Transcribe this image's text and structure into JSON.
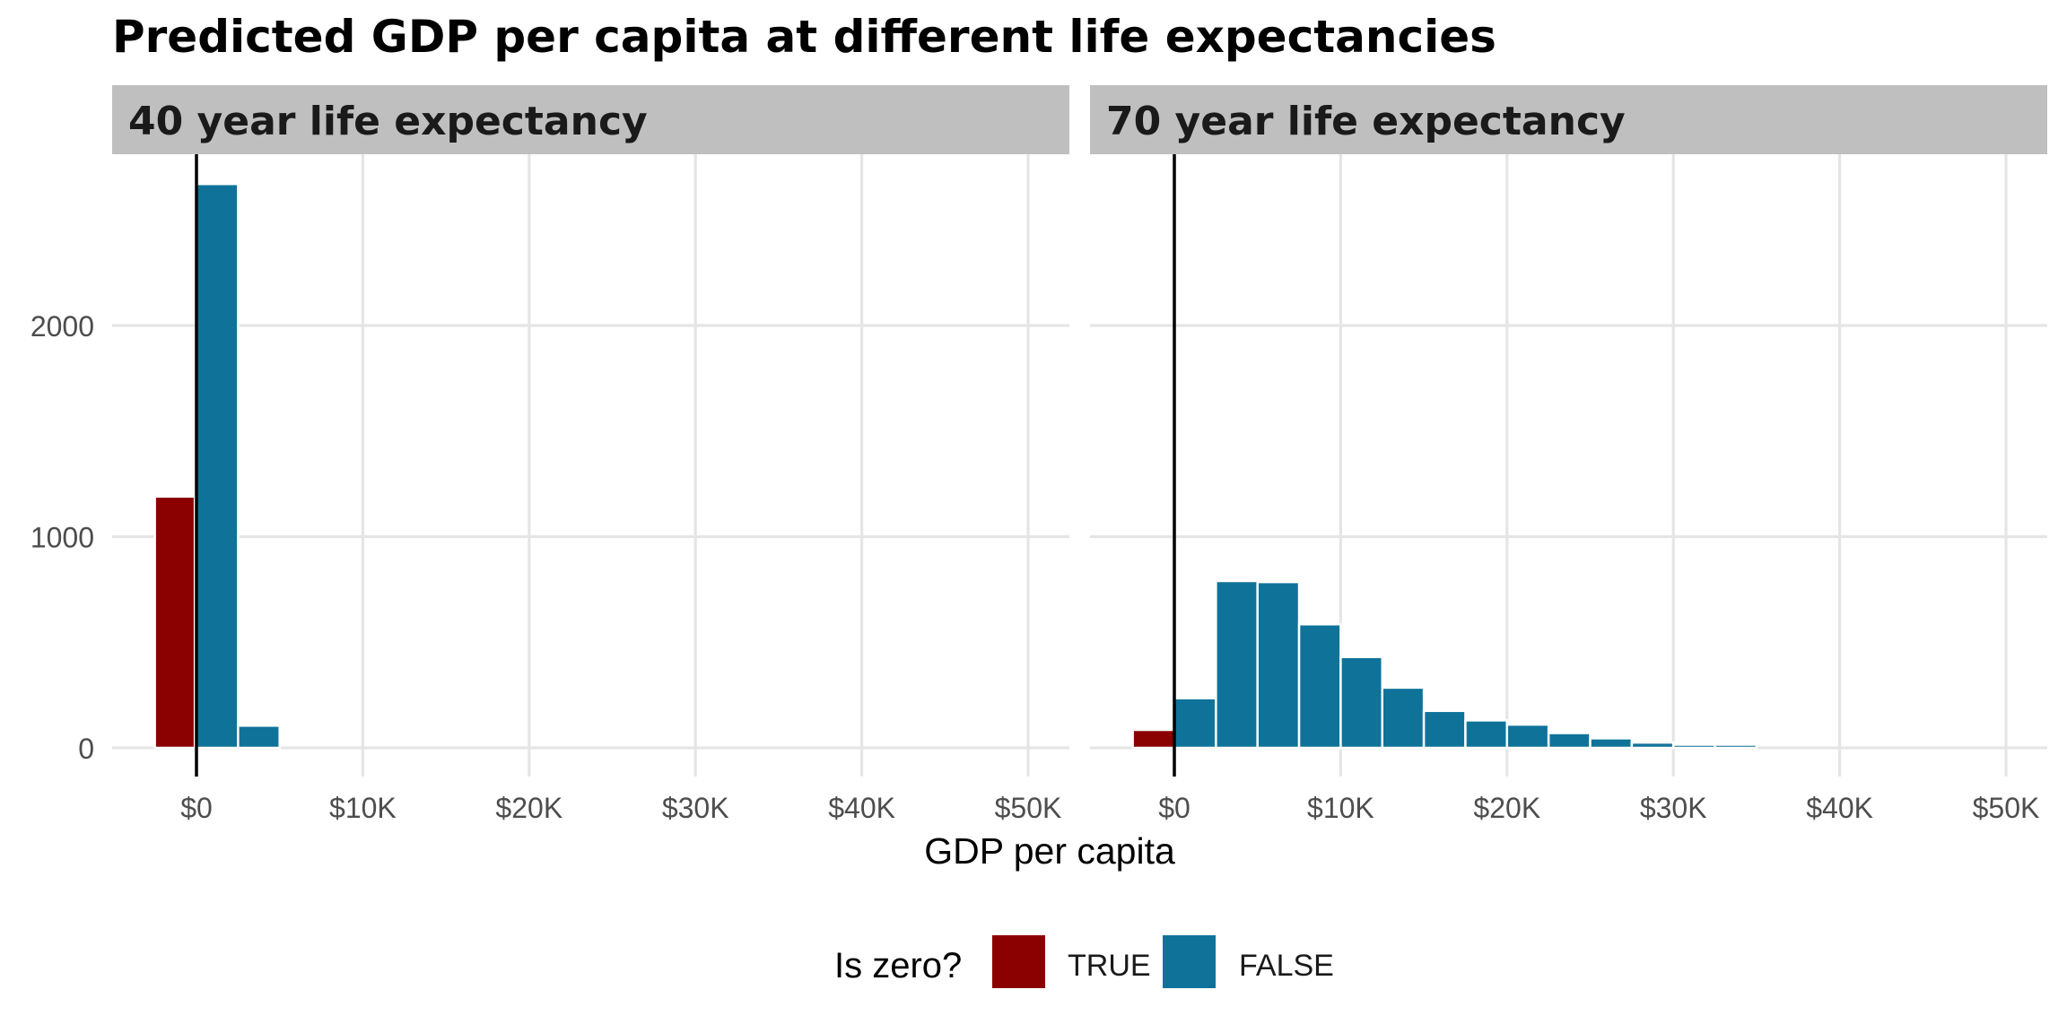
{
  "chart_data": {
    "type": "bar",
    "title": "Predicted GDP per capita at different life expectancies",
    "xlabel": "GDP per capita",
    "ylabel": "",
    "xlim": [
      -5000,
      52000
    ],
    "ylim": [
      -50,
      2750
    ],
    "x_ticks": [
      {
        "value": 0,
        "label": "$0"
      },
      {
        "value": 10000,
        "label": "$10K"
      },
      {
        "value": 20000,
        "label": "$20K"
      },
      {
        "value": 30000,
        "label": "$30K"
      },
      {
        "value": 40000,
        "label": "$40K"
      },
      {
        "value": 50000,
        "label": "$50K"
      }
    ],
    "y_ticks": [
      {
        "value": 0,
        "label": "0"
      },
      {
        "value": 1000,
        "label": "1000"
      },
      {
        "value": 2000,
        "label": "2000"
      }
    ],
    "vline_x": 0,
    "grid": true,
    "legend": {
      "title": "Is zero?",
      "position": "bottom",
      "entries": [
        {
          "label": "TRUE",
          "color": "#8b0000"
        },
        {
          "label": "FALSE",
          "color": "#0f7399"
        }
      ]
    },
    "facets": [
      {
        "label": "40 year life expectancy",
        "bins": [
          {
            "x0": -2500,
            "x1": -100,
            "count": 1190,
            "is_zero": "TRUE"
          },
          {
            "x0": 0,
            "x1": 2500,
            "count": 2670,
            "is_zero": "FALSE"
          },
          {
            "x0": 2500,
            "x1": 5000,
            "count": 105,
            "is_zero": "FALSE"
          }
        ]
      },
      {
        "label": "70 year life expectancy",
        "bins": [
          {
            "x0": -2500,
            "x1": 0,
            "count": 85,
            "is_zero": "TRUE"
          },
          {
            "x0": 0,
            "x1": 2500,
            "count": 235,
            "is_zero": "FALSE"
          },
          {
            "x0": 2500,
            "x1": 5000,
            "count": 790,
            "is_zero": "FALSE"
          },
          {
            "x0": 5000,
            "x1": 7500,
            "count": 785,
            "is_zero": "FALSE"
          },
          {
            "x0": 7500,
            "x1": 10000,
            "count": 585,
            "is_zero": "FALSE"
          },
          {
            "x0": 10000,
            "x1": 12500,
            "count": 430,
            "is_zero": "FALSE"
          },
          {
            "x0": 12500,
            "x1": 15000,
            "count": 285,
            "is_zero": "FALSE"
          },
          {
            "x0": 15000,
            "x1": 17500,
            "count": 175,
            "is_zero": "FALSE"
          },
          {
            "x0": 17500,
            "x1": 20000,
            "count": 130,
            "is_zero": "FALSE"
          },
          {
            "x0": 20000,
            "x1": 22500,
            "count": 110,
            "is_zero": "FALSE"
          },
          {
            "x0": 22500,
            "x1": 25000,
            "count": 70,
            "is_zero": "FALSE"
          },
          {
            "x0": 25000,
            "x1": 27500,
            "count": 45,
            "is_zero": "FALSE"
          },
          {
            "x0": 27500,
            "x1": 30000,
            "count": 25,
            "is_zero": "FALSE"
          },
          {
            "x0": 30000,
            "x1": 32500,
            "count": 15,
            "is_zero": "FALSE"
          },
          {
            "x0": 32500,
            "x1": 35000,
            "count": 15,
            "is_zero": "FALSE"
          }
        ]
      }
    ],
    "colors": {
      "true_fill": "#8b0000",
      "false_fill": "#0f7399",
      "strip_bg": "#bfbfbf",
      "grid": "#e5e5e5",
      "vline": "#000000"
    }
  }
}
